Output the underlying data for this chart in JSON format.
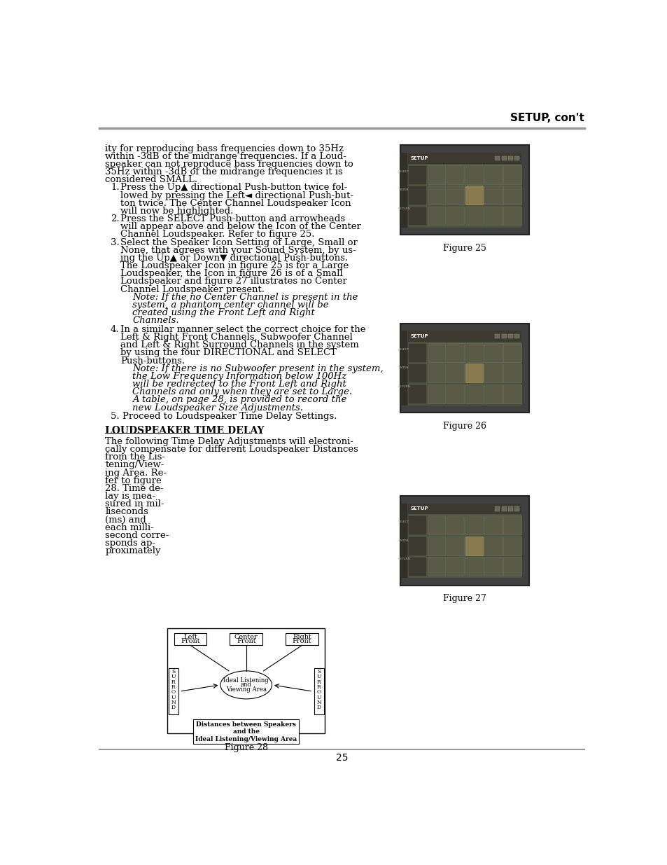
{
  "title": "SETUP, con't",
  "page_number": "25",
  "bg_color": "#ffffff",
  "header_line_color": "#999999",
  "footer_line_color": "#999999",
  "text_color": "#000000",
  "body_text": [
    "ity for reproducing bass frequencies down to 35Hz",
    "within -3dB of the midrange frequencies. If a Loud-",
    "speaker can not reproduce bass frequencies down to",
    "35Hz within -3dB of the midrange frequencies it is",
    "considered SMALL."
  ],
  "list_items": [
    {
      "num": "1.",
      "lines": [
        "Press the Up▲ directional Push-button twice fol-",
        "lowed by pressing the Left◄ directional Push-but-",
        "ton twice. The Center Channel Loudspeaker Icon",
        "will now be highlighted."
      ]
    },
    {
      "num": "2.",
      "lines": [
        "Press the SELECT Push-button and arrowheads",
        "will appear above and below the Icon of the Center",
        "Channel Loudspeaker. Refer to figure 25."
      ]
    },
    {
      "num": "3.",
      "lines": [
        "Select the Speaker Icon Setting of Large, Small or",
        "None, that agrees with your Sound System, by us-",
        "ing the Up▲ or Down▼ directional Push-buttons.",
        "The Loudspeaker Icon in figure 25 is for a Large",
        "Loudspeaker, the Icon in figure 26 is of a Small",
        "Loudspeaker and figure 27 illustrates no Center",
        "Channel Loudspeaker present."
      ]
    }
  ],
  "note1_lines": [
    "Note: If the no Center Channel is present in the",
    "system, a phantom center channel will be",
    "created using the Front Left and Right",
    "Channels."
  ],
  "list_item4_lines": [
    "In a similar manner select the correct choice for the",
    "Left & Right Front Channels, Subwoofer Channel",
    "and Left & Right Surround Channels in the system",
    "by using the four DIRECTIONAL and SELECT",
    "Push-buttons."
  ],
  "note2_lines": [
    "Note: If there is no Subwoofer present in the system,",
    "the Low Frequency Information below 100Hz",
    "will be redirected to the Front Left and Right",
    "Channels and only when they are set to Large.",
    "A table, on page 28, is provided to record the",
    "new Loudspeaker Size Adjustments."
  ],
  "list_item5": "5. Proceed to Loudspeaker Time Delay Settings.",
  "section_title": "LOUDSPEAKER TIME DELAY",
  "section_body1": "The following Time Delay Adjustments will electroni-",
  "section_body2": "cally compensate for different Loudspeaker Distances",
  "section_body3": "from the Lis-",
  "sidebar_lines": [
    "tening/View-",
    "ing Area. Re-",
    "fer to figure",
    "28. Time de-",
    "lay is mea-",
    "sured in mil-",
    "liseconds",
    "(ms) and",
    "each milli-",
    "second corre-",
    "sponds ap-",
    "proximately"
  ],
  "fig28_caption": "Figure 28",
  "fig25_caption": "Figure 25",
  "fig26_caption": "Figure 26",
  "fig27_caption": "Figure 27",
  "fig28_dist_text": "Distances between Speakers\nand the\nIdeal Listening/Viewing Area"
}
